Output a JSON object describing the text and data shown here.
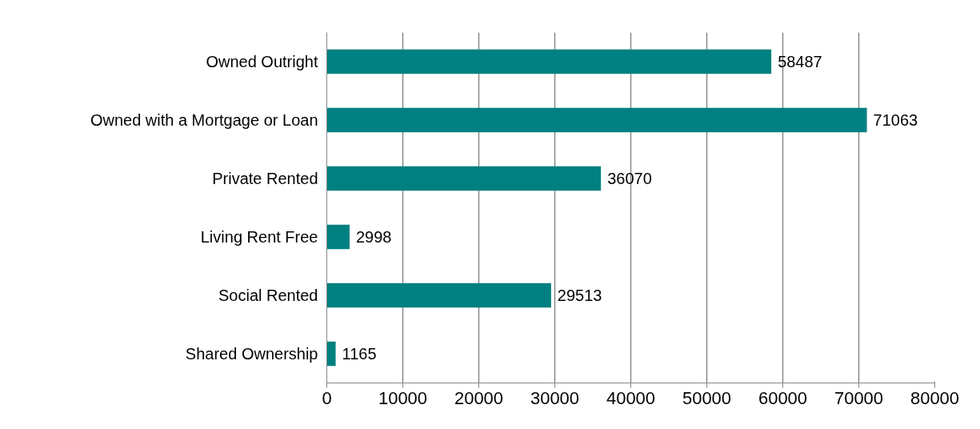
{
  "chart_data": {
    "type": "bar",
    "orientation": "horizontal",
    "categories": [
      "Owned Outright",
      "Owned with a Mortgage or Loan",
      "Private Rented",
      "Living Rent Free",
      "Social Rented",
      "Shared Ownership"
    ],
    "values": [
      58487,
      71063,
      36070,
      2998,
      29513,
      1165
    ],
    "color": "#008080",
    "xlim": [
      0,
      80000
    ],
    "xticks": [
      0,
      10000,
      20000,
      30000,
      40000,
      50000,
      60000,
      70000,
      80000
    ],
    "grid": "x",
    "data_labels": true
  }
}
